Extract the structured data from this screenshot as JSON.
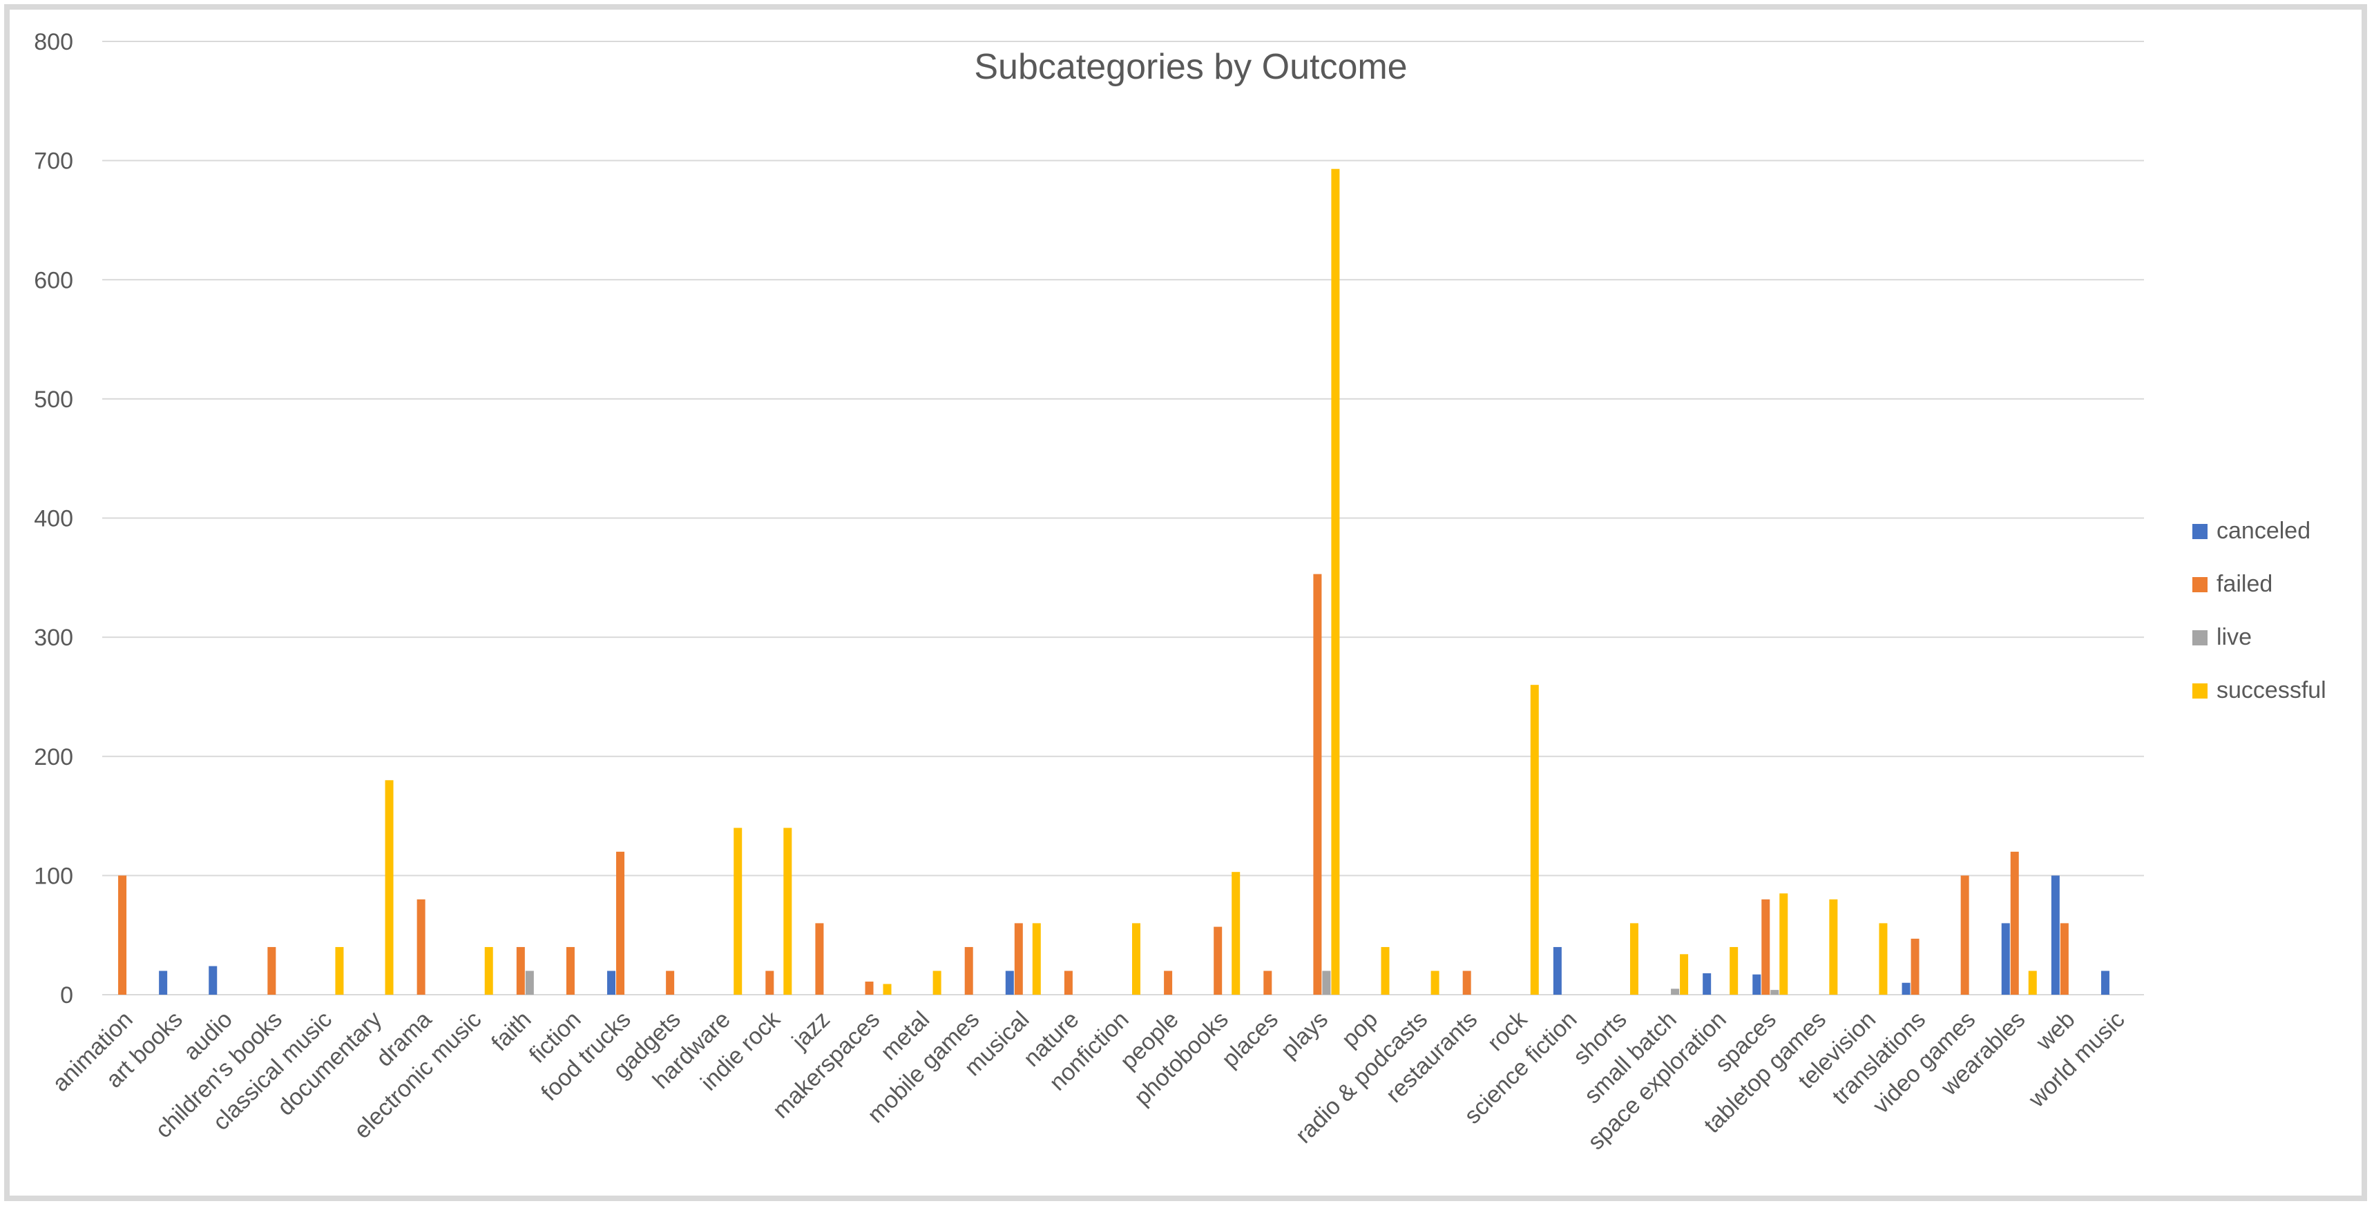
{
  "chart_data": {
    "type": "bar",
    "title": "Subcategories by Outcome",
    "xlabel": "",
    "ylabel": "",
    "ylim": [
      0,
      800
    ],
    "yticks": [
      0,
      100,
      200,
      300,
      400,
      500,
      600,
      700,
      800
    ],
    "grid": true,
    "legend": "right",
    "categories": [
      "animation",
      "art books",
      "audio",
      "children's books",
      "classical music",
      "documentary",
      "drama",
      "electronic music",
      "faith",
      "fiction",
      "food trucks",
      "gadgets",
      "hardware",
      "indie rock",
      "jazz",
      "makerspaces",
      "metal",
      "mobile games",
      "musical",
      "nature",
      "nonfiction",
      "people",
      "photobooks",
      "places",
      "plays",
      "pop",
      "radio & podcasts",
      "restaurants",
      "rock",
      "science fiction",
      "shorts",
      "small batch",
      "space exploration",
      "spaces",
      "tabletop games",
      "television",
      "translations",
      "video games",
      "wearables",
      "web",
      "world music"
    ],
    "series": [
      {
        "name": "canceled",
        "color": "#4472c4",
        "values": [
          0,
          20,
          24,
          0,
          0,
          0,
          0,
          0,
          0,
          0,
          20,
          0,
          0,
          0,
          0,
          0,
          0,
          0,
          20,
          0,
          0,
          0,
          0,
          0,
          0,
          0,
          0,
          0,
          0,
          40,
          0,
          0,
          18,
          17,
          0,
          0,
          10,
          0,
          60,
          100,
          20
        ]
      },
      {
        "name": "failed",
        "color": "#ed7d31",
        "values": [
          100,
          0,
          0,
          40,
          0,
          0,
          80,
          0,
          40,
          40,
          120,
          20,
          0,
          20,
          60,
          11,
          0,
          40,
          60,
          20,
          0,
          20,
          57,
          20,
          353,
          0,
          0,
          20,
          0,
          0,
          0,
          0,
          0,
          80,
          0,
          0,
          47,
          100,
          120,
          60,
          0
        ]
      },
      {
        "name": "live",
        "color": "#a5a5a5",
        "values": [
          0,
          0,
          0,
          0,
          0,
          0,
          0,
          0,
          20,
          0,
          0,
          0,
          0,
          0,
          0,
          0,
          0,
          0,
          0,
          0,
          0,
          0,
          0,
          0,
          20,
          0,
          0,
          0,
          0,
          0,
          0,
          5,
          0,
          4,
          0,
          0,
          0,
          0,
          0,
          0,
          0
        ]
      },
      {
        "name": "successful",
        "color": "#ffc000",
        "values": [
          0,
          0,
          0,
          0,
          40,
          180,
          0,
          40,
          0,
          0,
          0,
          0,
          140,
          140,
          0,
          9,
          20,
          0,
          60,
          0,
          60,
          0,
          103,
          0,
          693,
          40,
          20,
          0,
          260,
          0,
          60,
          34,
          40,
          85,
          80,
          60,
          0,
          0,
          20,
          0,
          0
        ]
      }
    ]
  }
}
